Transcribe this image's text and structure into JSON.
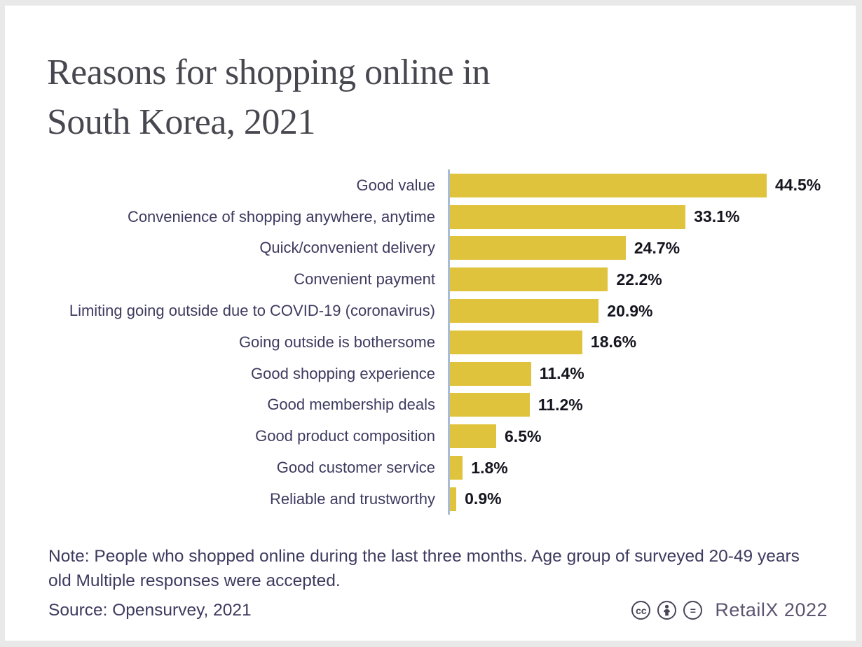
{
  "header": {
    "title_line1": "Reasons for shopping online in",
    "title_line2": "South Korea, 2021"
  },
  "chart_data": {
    "type": "bar",
    "orientation": "horizontal",
    "title": "Reasons for shopping online in South Korea, 2021",
    "categories": [
      "Good value",
      "Convenience of shopping anywhere, anytime",
      "Quick/convenient delivery",
      "Convenient payment",
      "Limiting going outside due to COVID-19 (coronavirus)",
      "Going outside is bothersome",
      "Good shopping experience",
      "Good membership deals",
      "Good product composition",
      "Good customer service",
      "Reliable and trustworthy"
    ],
    "values": [
      44.5,
      33.1,
      24.7,
      22.2,
      20.9,
      18.6,
      11.4,
      11.2,
      6.5,
      1.8,
      0.9
    ],
    "value_labels": [
      "44.5%",
      "33.1%",
      "24.7%",
      "22.2%",
      "20.9%",
      "18.6%",
      "11.4%",
      "11.2%",
      "6.5%",
      "1.8%",
      "0.9%"
    ],
    "unit": "%",
    "xlim": [
      0,
      46
    ],
    "grid": false,
    "legend": false,
    "bar_color": "#e0c33c",
    "axis_line_color": "#a9bcd4",
    "label_color": "#3e3a5f",
    "value_color": "#15151f"
  },
  "note": {
    "text": "Note: People who shopped online during the last three months. Age group of surveyed 20-49 years old Multiple responses were accepted."
  },
  "source": {
    "text": "Source: Opensurvey, 2021"
  },
  "footer": {
    "brand": "RetailX 2022",
    "cc_glyph": "cc",
    "equal_glyph": "=",
    "license_icons": [
      "cc-icon",
      "attribution-icon",
      "equal-icon"
    ]
  },
  "colors": {
    "background": "#ffffff",
    "frame": "#e9e9e9",
    "title": "#47474f"
  }
}
